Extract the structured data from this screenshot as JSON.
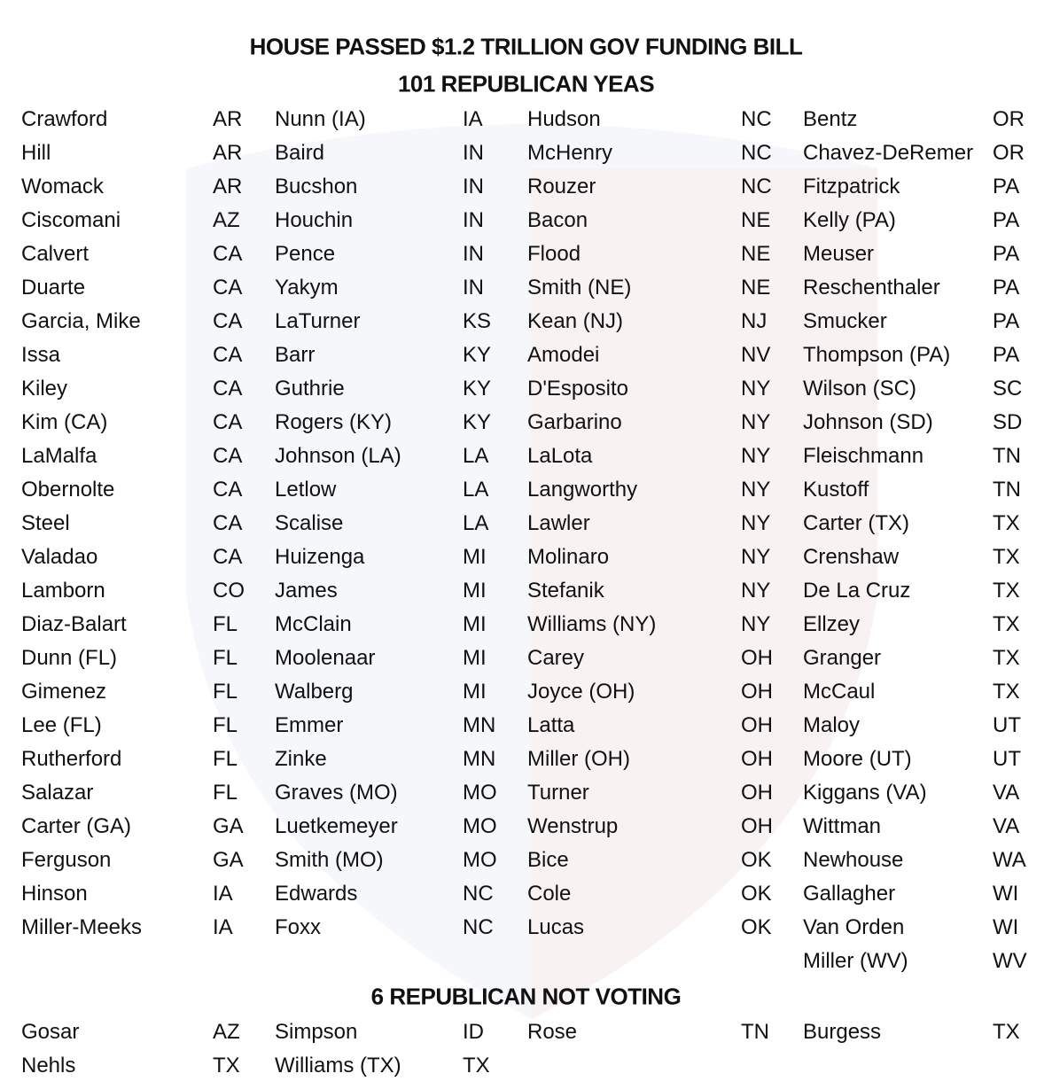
{
  "title": "HOUSE PASSED $1.2 TRILLION GOV FUNDING BILL",
  "yeas": {
    "heading": "101 REPUBLICAN YEAS",
    "columns": [
      [
        [
          "Crawford",
          "AR"
        ],
        [
          "Hill",
          "AR"
        ],
        [
          "Womack",
          "AR"
        ],
        [
          "Ciscomani",
          "AZ"
        ],
        [
          "Calvert",
          "CA"
        ],
        [
          "Duarte",
          "CA"
        ],
        [
          "Garcia, Mike",
          "CA"
        ],
        [
          "Issa",
          "CA"
        ],
        [
          "Kiley",
          "CA"
        ],
        [
          "Kim (CA)",
          "CA"
        ],
        [
          "LaMalfa",
          "CA"
        ],
        [
          "Obernolte",
          "CA"
        ],
        [
          "Steel",
          "CA"
        ],
        [
          "Valadao",
          "CA"
        ],
        [
          "Lamborn",
          "CO"
        ],
        [
          "Diaz-Balart",
          "FL"
        ],
        [
          "Dunn (FL)",
          "FL"
        ],
        [
          "Gimenez",
          "FL"
        ],
        [
          "Lee (FL)",
          "FL"
        ],
        [
          "Rutherford",
          "FL"
        ],
        [
          "Salazar",
          "FL"
        ],
        [
          "Carter (GA)",
          "GA"
        ],
        [
          "Ferguson",
          "GA"
        ],
        [
          "Hinson",
          "IA"
        ],
        [
          "Miller-Meeks",
          "IA"
        ]
      ],
      [
        [
          "Nunn (IA)",
          "IA"
        ],
        [
          "Baird",
          "IN"
        ],
        [
          "Bucshon",
          "IN"
        ],
        [
          "Houchin",
          "IN"
        ],
        [
          "Pence",
          "IN"
        ],
        [
          "Yakym",
          "IN"
        ],
        [
          "LaTurner",
          "KS"
        ],
        [
          "Barr",
          "KY"
        ],
        [
          "Guthrie",
          "KY"
        ],
        [
          "Rogers (KY)",
          "KY"
        ],
        [
          "Johnson (LA)",
          "LA"
        ],
        [
          "Letlow",
          "LA"
        ],
        [
          "Scalise",
          "LA"
        ],
        [
          "Huizenga",
          "MI"
        ],
        [
          "James",
          "MI"
        ],
        [
          "McClain",
          "MI"
        ],
        [
          "Moolenaar",
          "MI"
        ],
        [
          "Walberg",
          "MI"
        ],
        [
          "Emmer",
          "MN"
        ],
        [
          "Zinke",
          "MN"
        ],
        [
          "Graves (MO)",
          "MO"
        ],
        [
          "Luetkemeyer",
          "MO"
        ],
        [
          "Smith (MO)",
          "MO"
        ],
        [
          "Edwards",
          "NC"
        ],
        [
          "Foxx",
          "NC"
        ]
      ],
      [
        [
          "Hudson",
          "NC"
        ],
        [
          "McHenry",
          "NC"
        ],
        [
          "Rouzer",
          "NC"
        ],
        [
          "Bacon",
          "NE"
        ],
        [
          "Flood",
          "NE"
        ],
        [
          "Smith (NE)",
          "NE"
        ],
        [
          "Kean (NJ)",
          "NJ"
        ],
        [
          "Amodei",
          "NV"
        ],
        [
          "D'Esposito",
          "NY"
        ],
        [
          "Garbarino",
          "NY"
        ],
        [
          "LaLota",
          "NY"
        ],
        [
          "Langworthy",
          "NY"
        ],
        [
          "Lawler",
          "NY"
        ],
        [
          "Molinaro",
          "NY"
        ],
        [
          "Stefanik",
          "NY"
        ],
        [
          "Williams (NY)",
          "NY"
        ],
        [
          "Carey",
          "OH"
        ],
        [
          "Joyce (OH)",
          "OH"
        ],
        [
          "Latta",
          "OH"
        ],
        [
          "Miller (OH)",
          "OH"
        ],
        [
          "Turner",
          "OH"
        ],
        [
          "Wenstrup",
          "OH"
        ],
        [
          "Bice",
          "OK"
        ],
        [
          "Cole",
          "OK"
        ],
        [
          "Lucas",
          "OK"
        ]
      ],
      [
        [
          "Bentz",
          "OR"
        ],
        [
          "Chavez-DeRemer",
          "OR"
        ],
        [
          "Fitzpatrick",
          "PA"
        ],
        [
          "Kelly (PA)",
          "PA"
        ],
        [
          "Meuser",
          "PA"
        ],
        [
          "Reschenthaler",
          "PA"
        ],
        [
          "Smucker",
          "PA"
        ],
        [
          "Thompson (PA)",
          "PA"
        ],
        [
          "Wilson (SC)",
          "SC"
        ],
        [
          "Johnson (SD)",
          "SD"
        ],
        [
          "Fleischmann",
          "TN"
        ],
        [
          "Kustoff",
          "TN"
        ],
        [
          "Carter (TX)",
          "TX"
        ],
        [
          "Crenshaw",
          "TX"
        ],
        [
          "De La Cruz",
          "TX"
        ],
        [
          "Ellzey",
          "TX"
        ],
        [
          "Granger",
          "TX"
        ],
        [
          "McCaul",
          "TX"
        ],
        [
          "Maloy",
          "UT"
        ],
        [
          "Moore (UT)",
          "UT"
        ],
        [
          "Kiggans (VA)",
          "VA"
        ],
        [
          "Wittman",
          "VA"
        ],
        [
          "Newhouse",
          "WA"
        ],
        [
          "Gallagher",
          "WI"
        ],
        [
          "Van Orden",
          "WI"
        ],
        [
          "Miller (WV)",
          "WV"
        ]
      ]
    ]
  },
  "not_voting": {
    "heading": "6 REPUBLICAN NOT VOTING",
    "columns": [
      [
        [
          "Gosar",
          "AZ"
        ],
        [
          "Nehls",
          "TX"
        ]
      ],
      [
        [
          "Simpson",
          "ID"
        ],
        [
          "Williams (TX)",
          "TX"
        ]
      ],
      [
        [
          "Rose",
          "TN"
        ]
      ],
      [
        [
          "Burgess",
          "TX"
        ]
      ]
    ]
  },
  "watermark_colors": [
    "#e7ecf4",
    "#f6e9e9"
  ]
}
